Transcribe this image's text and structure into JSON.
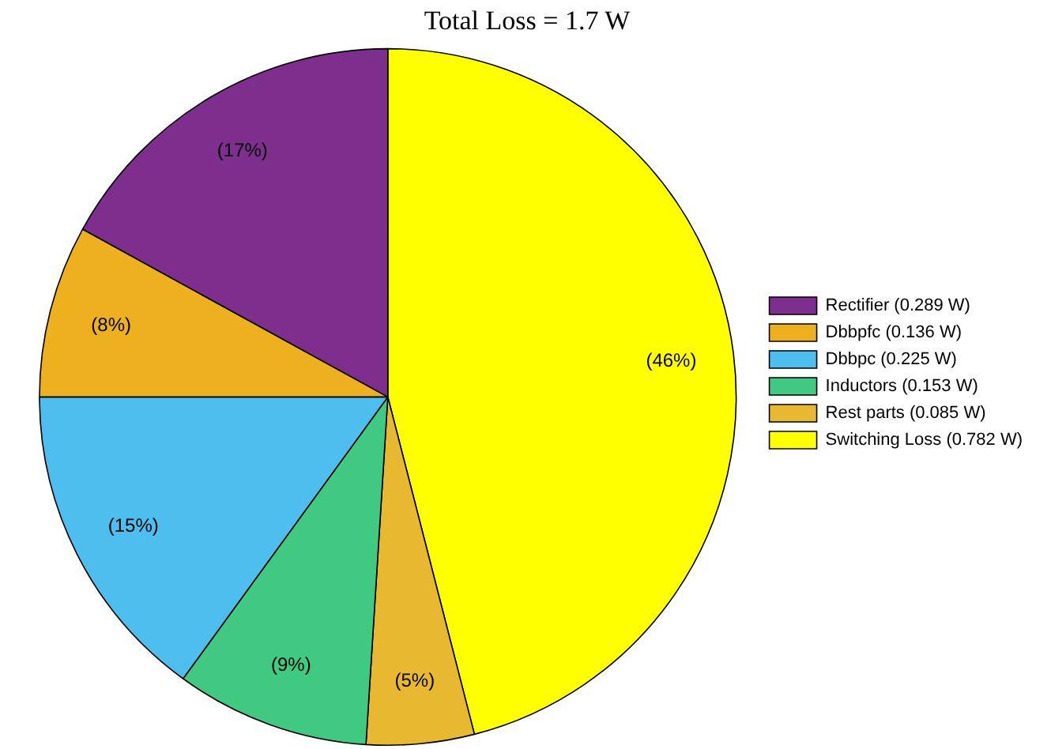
{
  "chart_data": {
    "type": "pie",
    "title": "Total Loss = 1.7 W",
    "categories": [
      "Rectifier (0.289 W)",
      "Dbbpfc (0.136 W)",
      "Dbbpc (0.225 W)",
      "Inductors (0.153 W)",
      "Rest parts (0.085 W)",
      "Switching Loss (0.782 W)"
    ],
    "values": [
      17,
      8,
      15,
      9,
      5,
      46
    ],
    "colors": [
      "#7e2f8e",
      "#edb120",
      "#4dbeee",
      "#40c980",
      "#e8b830",
      "#ffff00"
    ],
    "value_labels": [
      "(17%)",
      "(8%)",
      "(15%)",
      "(9%)",
      "(5%)",
      "(46%)"
    ],
    "legend": "right"
  }
}
